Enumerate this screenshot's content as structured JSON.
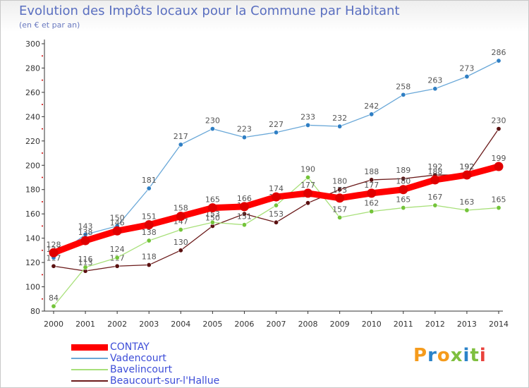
{
  "title": "Evolution des Impôts locaux pour la Commune par Habitant",
  "subtitle": "(en € et par an)",
  "logo_text": "Proxiti",
  "logo_colors": [
    "#f59b1c",
    "#2b83c9",
    "#f59b1c",
    "#7fbf3f",
    "#2b83c9",
    "#7fbf3f",
    "#e9423c"
  ],
  "chart_data": {
    "type": "line",
    "title": "Evolution des Impôts locaux pour la Commune par Habitant",
    "subtitle": "(en € et par an)",
    "x": [
      "2000",
      "2001",
      "2002",
      "2003",
      "2004",
      "2005",
      "2006",
      "2007",
      "2008",
      "2009",
      "2010",
      "2011",
      "2012",
      "2013",
      "2014"
    ],
    "ylim": [
      80,
      300
    ],
    "yticks": [
      80,
      100,
      120,
      140,
      160,
      180,
      200,
      220,
      240,
      260,
      280,
      300
    ],
    "grid": false,
    "legend_position": "bottom-left",
    "series": [
      {
        "name": "Beaucourt-sur-l'Hallue",
        "color": "#6b1a1a",
        "marker": "#5a1010",
        "values": [
          117,
          113,
          117,
          118,
          130,
          150,
          160,
          153,
          169,
          180,
          188,
          189,
          192,
          192,
          230
        ],
        "labels": [
          "117",
          "113",
          "117",
          "118",
          "130",
          "150",
          "160",
          "153",
          "169",
          "180",
          "188",
          "189",
          "192",
          "192",
          "230"
        ]
      },
      {
        "name": "Bavelincourt",
        "color": "#a8e07a",
        "marker": "#74c43a",
        "values": [
          84,
          116,
          124,
          138,
          147,
          153,
          151,
          167,
          190,
          157,
          162,
          165,
          167,
          163,
          165
        ],
        "labels": [
          "84",
          "116",
          "124",
          "138",
          "147",
          "153",
          "151",
          "167",
          "190",
          "157",
          "162",
          "165",
          "167",
          "163",
          "165"
        ]
      },
      {
        "name": "Vadencourt",
        "color": "#6aa8d8",
        "marker": "#2f7fc4",
        "values": [
          124,
          143,
          150,
          181,
          217,
          230,
          223,
          227,
          233,
          232,
          242,
          258,
          263,
          273,
          286
        ],
        "labels": [
          "124",
          "143",
          "150",
          "181",
          "217",
          "230",
          "223",
          "227",
          "233",
          "232",
          "242",
          "258",
          "263",
          "273",
          "286"
        ]
      },
      {
        "name": "CONTAY",
        "color": "#ff0000",
        "marker": "#e00000",
        "thick": true,
        "values": [
          128,
          138,
          146,
          151,
          158,
          165,
          166,
          174,
          177,
          173,
          177,
          180,
          188,
          192,
          199
        ],
        "labels": [
          "128",
          "138",
          "146",
          "151",
          "158",
          "165",
          "166",
          "174",
          "177",
          "173",
          "177",
          "180",
          "188",
          "192",
          "199"
        ]
      }
    ],
    "legend": [
      "CONTAY",
      "Vadencourt",
      "Bavelincourt",
      "Beaucourt-sur-l'Hallue"
    ]
  }
}
